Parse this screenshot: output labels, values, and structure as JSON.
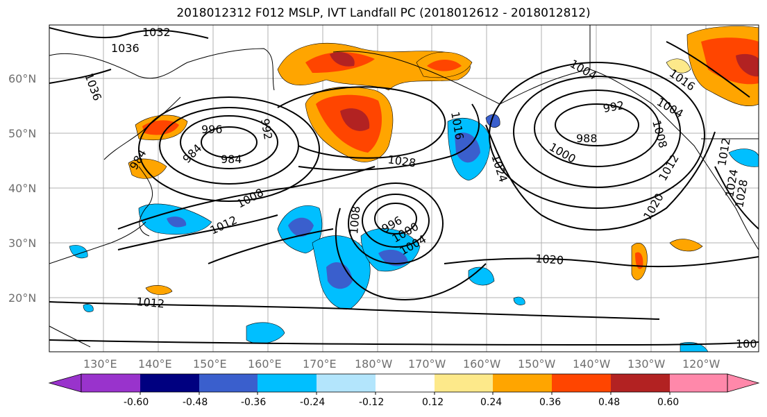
{
  "title": "2018012312 F012 MSLP, IVT Landfall PC (2018012612 - 2018012812)",
  "lat_labels": [
    "60°N",
    "50°N",
    "40°N",
    "30°N",
    "20°N"
  ],
  "lon_labels": [
    "130°E",
    "140°E",
    "150°E",
    "160°E",
    "170°E",
    "180°W",
    "170°W",
    "160°W",
    "150°W",
    "140°W",
    "130°W",
    "120°W"
  ],
  "contour_labels": [
    "1036",
    "1032",
    "1036",
    "996",
    "992",
    "984",
    "984",
    "984",
    "1008",
    "1012",
    "1028",
    "1016",
    "1024",
    "1008",
    "996",
    "1000",
    "1004",
    "1020",
    "1012",
    "992",
    "988",
    "1000",
    "1004",
    "1016",
    "1008",
    "1012",
    "1020",
    "1012",
    "1024",
    "1028",
    "1004",
    "100"
  ],
  "colorbar": {
    "ticks": [
      "-0.60",
      "-0.48",
      "-0.36",
      "-0.24",
      "-0.12",
      "0.12",
      "0.24",
      "0.36",
      "0.48",
      "0.60"
    ],
    "colors": [
      "#9933cc",
      "#000080",
      "#3a5fcd",
      "#00bfff",
      "#b3e5fc",
      "#ffffff",
      "#fde98a",
      "#ffa500",
      "#ff4500",
      "#b22222",
      "#ff88aa"
    ]
  },
  "colors": {
    "neg_light": "#00bfff",
    "neg_mid": "#3a5fcd",
    "pos_light": "#ffa500",
    "pos_mid": "#ff4500",
    "pos_dark": "#b22222",
    "pos_pale": "#fde98a"
  }
}
